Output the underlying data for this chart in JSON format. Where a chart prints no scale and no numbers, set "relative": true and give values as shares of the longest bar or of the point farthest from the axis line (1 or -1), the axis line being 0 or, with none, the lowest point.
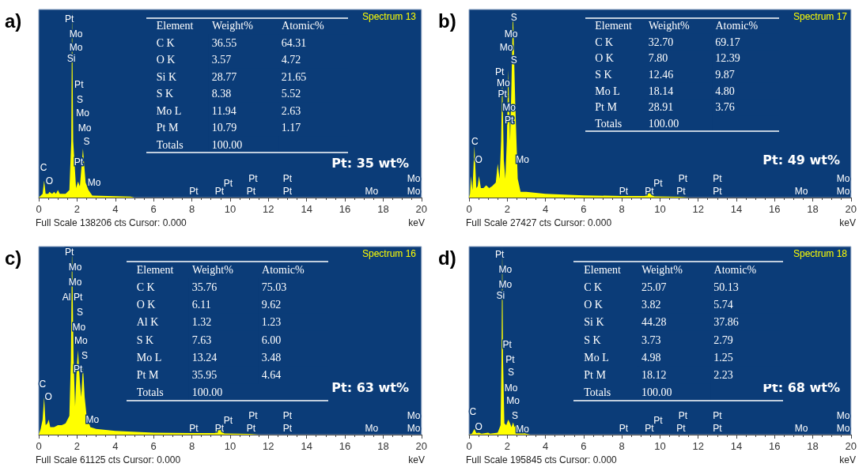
{
  "chart_data": [
    {
      "type": "area",
      "title": "Spectrum 13",
      "xlabel": "keV",
      "relative": true,
      "color": "#ffff00",
      "xlim": [
        0,
        20
      ],
      "xticks": [
        0,
        2,
        4,
        6,
        8,
        10,
        12,
        14,
        16,
        18,
        20
      ],
      "x": [
        0,
        0.2,
        0.28,
        0.36,
        0.5,
        0.55,
        0.7,
        0.8,
        0.9,
        1.0,
        1.1,
        1.4,
        1.6,
        1.7,
        1.74,
        1.8,
        1.95,
        2.05,
        2.15,
        2.31,
        2.45,
        2.6,
        2.8,
        4.8,
        5
      ],
      "values": [
        0,
        0.02,
        0.09,
        0.02,
        0.02,
        0.03,
        0.02,
        0.03,
        0.02,
        0.04,
        0.02,
        0.02,
        0.04,
        0.3,
        1,
        0.3,
        0.05,
        0.085,
        0.06,
        0.26,
        0.08,
        0.04,
        0.01,
        0.005,
        0
      ],
      "annotations": [
        "a)",
        "Full Scale 138206 cts Cursor: 0.000",
        "Pt: 35 wt%",
        "Pt",
        "Mo",
        "Mo",
        "Si",
        "Pt",
        "S",
        "Mo",
        "Mo",
        "S",
        "C",
        "O",
        "Pt",
        "Mo",
        "Pt",
        "Pt",
        "Pt",
        "Pt",
        "Pt",
        "Pt",
        "Pt",
        "Mo",
        "Mo",
        "Mo"
      ]
    },
    {
      "type": "other",
      "ylabel": "Element",
      "categories": [
        "Weight%",
        "Atomic%"
      ],
      "y_categories": [
        "C K",
        "O K",
        "Si K",
        "S K",
        "Mo L",
        "Pt M",
        "Totals"
      ],
      "cell_labels": [
        [
          "36.55",
          "64.31"
        ],
        [
          "3.57",
          "4.72"
        ],
        [
          "28.77",
          "21.65"
        ],
        [
          "8.38",
          "5.52"
        ],
        [
          "11.94",
          "2.63"
        ],
        [
          "10.79",
          "1.17"
        ],
        [
          "100.00",
          null
        ]
      ]
    },
    {
      "type": "area",
      "title": "Spectrum 17",
      "xlabel": "keV",
      "relative": true,
      "color": "#ffff00",
      "xlim": [
        0,
        20
      ],
      "xticks": [
        0,
        2,
        4,
        6,
        8,
        10,
        12,
        14,
        16,
        18,
        20
      ],
      "x": [
        0,
        0.05,
        0.1,
        0.18,
        0.28,
        0.38,
        0.45,
        0.52,
        0.62,
        0.75,
        0.9,
        1.05,
        1.2,
        1.4,
        1.5,
        1.6,
        1.68,
        1.74,
        1.82,
        1.9,
        1.98,
        2.05,
        2.15,
        2.22,
        2.3,
        2.42,
        2.55,
        2.7,
        3,
        4,
        6,
        8,
        9.2,
        9.44,
        9.7,
        11,
        11.5
      ],
      "values": [
        0,
        0.02,
        0.115,
        0.04,
        0.275,
        0.05,
        0.06,
        0.115,
        0.05,
        0.05,
        0.065,
        0.05,
        0.06,
        0.08,
        0.18,
        0.1,
        0.3,
        0.64,
        0.2,
        0.1,
        0.3,
        0.68,
        0.3,
        0.6,
        1,
        0.5,
        0.1,
        0.03,
        0.03,
        0.02,
        0.012,
        0.008,
        0.008,
        0.025,
        0.006,
        0.004,
        0
      ],
      "annotations": [
        "b)",
        "Full Scale 27427 cts Cursor: 0.000",
        "Pt: 49 wt%",
        "S",
        "Mo",
        "Mo",
        "S",
        "Pt",
        "Mo",
        "Pt",
        "Mo",
        "Pt",
        "C",
        "O",
        "Mo",
        "Pt",
        "Pt",
        "Pt",
        "Pt",
        "Pt",
        "Pt",
        "Pt",
        "Mo",
        "Mo",
        "Mo"
      ]
    },
    {
      "type": "other",
      "ylabel": "Element",
      "categories": [
        "Weight%",
        "Atomic%"
      ],
      "y_categories": [
        "C K",
        "O K",
        "S K",
        "Mo L",
        "Pt M",
        "Totals"
      ],
      "cell_labels": [
        [
          "32.70",
          "69.17"
        ],
        [
          "7.80",
          "12.39"
        ],
        [
          "12.46",
          "9.87"
        ],
        [
          "18.14",
          "4.80"
        ],
        [
          "28.91",
          "3.76"
        ],
        [
          "100.00",
          null
        ]
      ]
    },
    {
      "type": "area",
      "title": "Spectrum 16",
      "xlabel": "keV",
      "relative": true,
      "color": "#ffff00",
      "xlim": [
        0,
        20
      ],
      "xticks": [
        0,
        2,
        4,
        6,
        8,
        10,
        12,
        14,
        16,
        18,
        20
      ],
      "x": [
        0,
        0.1,
        0.2,
        0.28,
        0.36,
        0.45,
        0.52,
        0.6,
        0.8,
        1.0,
        1.2,
        1.4,
        1.5,
        1.6,
        1.68,
        1.74,
        1.82,
        1.9,
        1.98,
        2.05,
        2.15,
        2.22,
        2.31,
        2.4,
        2.5,
        2.7,
        3,
        4,
        6,
        8,
        9.2,
        9.44,
        9.7,
        11,
        11.5
      ],
      "values": [
        0,
        0.03,
        0.08,
        0.2,
        0.05,
        0.06,
        0.08,
        0.04,
        0.04,
        0.05,
        0.05,
        0.06,
        0.08,
        0.1,
        0.4,
        1,
        0.4,
        0.15,
        0.35,
        0.45,
        0.28,
        0.2,
        0.365,
        0.2,
        0.1,
        0.04,
        0.03,
        0.02,
        0.01,
        0.008,
        0.008,
        0.03,
        0.006,
        0.004,
        0
      ],
      "annotations": [
        "c)",
        "Full Scale 61125 cts Cursor: 0.000",
        "Pt: 63 wt%",
        "Pt",
        "Mo",
        "Mo",
        "Al",
        "Pt",
        "S",
        "Mo",
        "Mo",
        "S",
        "Pt",
        "C",
        "O",
        "Mo",
        "Pt",
        "Pt",
        "Pt",
        "Pt",
        "Pt",
        "Pt",
        "Pt",
        "Mo",
        "Mo",
        "Mo"
      ]
    },
    {
      "type": "other",
      "ylabel": "Element",
      "categories": [
        "Weight%",
        "Atomic%"
      ],
      "y_categories": [
        "C K",
        "O K",
        "Al K",
        "S K",
        "Mo L",
        "Pt M",
        "Totals"
      ],
      "cell_labels": [
        [
          "35.76",
          "75.03"
        ],
        [
          "6.11",
          "9.62"
        ],
        [
          "1.32",
          "1.23"
        ],
        [
          "7.63",
          "6.00"
        ],
        [
          "13.24",
          "3.48"
        ],
        [
          "35.95",
          "4.64"
        ],
        [
          "100.00",
          null
        ]
      ]
    },
    {
      "type": "area",
      "title": "Spectrum 18",
      "xlabel": "keV",
      "relative": true,
      "color": "#ffff00",
      "xlim": [
        0,
        20
      ],
      "xticks": [
        0,
        2,
        4,
        6,
        8,
        10,
        12,
        14,
        16,
        18,
        20
      ],
      "x": [
        0,
        0.15,
        0.28,
        0.38,
        0.52,
        0.65,
        1.0,
        1.1,
        1.5,
        1.65,
        1.7,
        1.74,
        1.78,
        1.85,
        1.95,
        2.05,
        2.15,
        2.22,
        2.31,
        2.38,
        2.45,
        2.52,
        2.6,
        2.8,
        3,
        3.2
      ],
      "values": [
        0,
        0.005,
        0.03,
        0.008,
        0.01,
        0.005,
        0.01,
        0.005,
        0.01,
        0.05,
        0.4,
        1,
        0.4,
        0.06,
        0.05,
        0.08,
        0.06,
        0.04,
        0.065,
        0.04,
        0.05,
        0.03,
        0.04,
        0.01,
        0.005,
        0
      ],
      "annotations": [
        "d)",
        "Full Scale 195845 cts Cursor: 0.000",
        "Pt: 68 wt%",
        "Pt",
        "Mo",
        "Mo",
        "Si",
        "Pt",
        "Pt",
        "S",
        "Mo",
        "Mo",
        "S",
        "Mo",
        "C",
        "O",
        "Pt",
        "Pt",
        "Pt",
        "Pt",
        "Pt",
        "Pt",
        "Pt",
        "Mo",
        "Mo",
        "Mo"
      ]
    },
    {
      "type": "other",
      "ylabel": "Element",
      "categories": [
        "Weight%",
        "Atomic%"
      ],
      "y_categories": [
        "C K",
        "O K",
        "Si K",
        "S K",
        "Mo L",
        "Pt M",
        "Totals"
      ],
      "cell_labels": [
        [
          "25.07",
          "50.13"
        ],
        [
          "3.82",
          "5.74"
        ],
        [
          "44.28",
          "37.86"
        ],
        [
          "3.73",
          "2.79"
        ],
        [
          "4.98",
          "1.25"
        ],
        [
          "18.12",
          "2.23"
        ],
        [
          "100.00",
          null
        ]
      ]
    }
  ]
}
